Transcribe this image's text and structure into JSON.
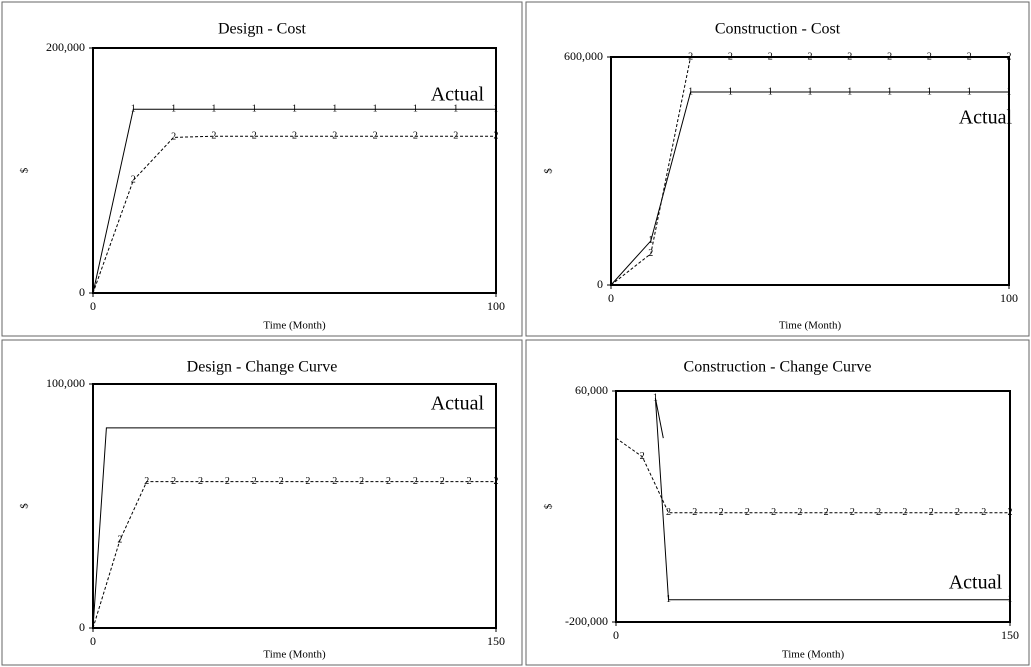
{
  "chart_data": [
    {
      "type": "line",
      "title": "Design - Cost",
      "x_label": "Time (Month)",
      "y_label": "$",
      "annotation": "Actual",
      "xlim": [
        0,
        100
      ],
      "xticks": [
        0,
        100
      ],
      "ylim": [
        0,
        200000
      ],
      "yticks": [
        0,
        {
          "value": 200000,
          "label": "200,000"
        }
      ],
      "grid": false,
      "series": [
        {
          "marker": "1",
          "color": "#000000",
          "dashed": false,
          "x": [
            0,
            10,
            20,
            30,
            40,
            50,
            60,
            70,
            80,
            90,
            100
          ],
          "values": [
            0,
            150000,
            150000,
            150000,
            150000,
            150000,
            150000,
            150000,
            150000,
            150000,
            150000
          ]
        },
        {
          "marker": "2",
          "color": "#000000",
          "dashed": true,
          "x": [
            0,
            10,
            20,
            30,
            40,
            50,
            60,
            70,
            80,
            90,
            100
          ],
          "values": [
            0,
            92000,
            127000,
            128000,
            128000,
            128000,
            128000,
            128000,
            128000,
            128000,
            128000
          ]
        }
      ]
    },
    {
      "type": "line",
      "title": "Construction - Cost",
      "x_label": "Time (Month)",
      "y_label": "$",
      "annotation": "Actual",
      "xlim": [
        0,
        100
      ],
      "xticks": [
        0,
        100
      ],
      "ylim": [
        0,
        600000
      ],
      "yticks": [
        0,
        {
          "value": 600000,
          "label": "600,000"
        }
      ],
      "grid": false,
      "series": [
        {
          "marker": "1",
          "color": "#000000",
          "dashed": false,
          "x": [
            0,
            10,
            20,
            30,
            40,
            50,
            60,
            70,
            80,
            90,
            100
          ],
          "values": [
            0,
            116000,
            508000,
            508000,
            508000,
            508000,
            508000,
            508000,
            508000,
            508000,
            508000
          ]
        },
        {
          "marker": "2",
          "color": "#000000",
          "dashed": true,
          "x": [
            0,
            10,
            20,
            30,
            40,
            50,
            60,
            70,
            80,
            90,
            100
          ],
          "values": [
            0,
            82000,
            600000,
            600000,
            600000,
            600000,
            600000,
            600000,
            600000,
            600000,
            600000
          ]
        }
      ]
    },
    {
      "type": "line",
      "title": "Design - Change Curve",
      "x_label": "Time (Month)",
      "y_label": "$",
      "annotation": "Actual",
      "xlim": [
        0,
        150
      ],
      "xticks": [
        0,
        150
      ],
      "ylim": [
        0,
        100000
      ],
      "yticks": [
        0,
        {
          "value": 100000,
          "label": "100,000"
        }
      ],
      "grid": false,
      "series": [
        {
          "color": "#000000",
          "dashed": false,
          "x": [
            0,
            5,
            150
          ],
          "values": [
            0,
            82000,
            82000
          ]
        },
        {
          "marker": "2",
          "color": "#000000",
          "dashed": true,
          "x": [
            0,
            10,
            20,
            30,
            40,
            50,
            60,
            70,
            80,
            90,
            100,
            110,
            120,
            130,
            140,
            150
          ],
          "values": [
            0,
            36000,
            60000,
            60000,
            60000,
            60000,
            60000,
            60000,
            60000,
            60000,
            60000,
            60000,
            60000,
            60000,
            60000,
            60000
          ]
        }
      ]
    },
    {
      "type": "line",
      "title": "Construction - Change Curve",
      "x_label": "Time (Month)",
      "y_label": "$",
      "annotation": "Actual",
      "xlim": [
        0,
        150
      ],
      "xticks": [
        0,
        150
      ],
      "ylim": [
        -200000,
        60000
      ],
      "yticks": [
        {
          "value": -200000,
          "label": "-200,000"
        },
        {
          "value": 60000,
          "label": "60,000"
        }
      ],
      "grid": false,
      "series": [
        {
          "marker": "1",
          "color": "#000000",
          "dashed": false,
          "x": [
            18,
            15,
            20,
            150
          ],
          "values": [
            7000,
            52000,
            -175000,
            -175000
          ]
        },
        {
          "marker": "2",
          "color": "#000000",
          "dashed": true,
          "x": [
            0,
            10,
            20,
            30,
            40,
            50,
            60,
            70,
            80,
            90,
            100,
            110,
            120,
            130,
            140,
            150
          ],
          "values": [
            7000,
            -14000,
            -77000,
            -77000,
            -77000,
            -77000,
            -77000,
            -77000,
            -77000,
            -77000,
            -77000,
            -77000,
            -77000,
            -77000,
            -77000,
            -77000
          ]
        }
      ]
    }
  ]
}
